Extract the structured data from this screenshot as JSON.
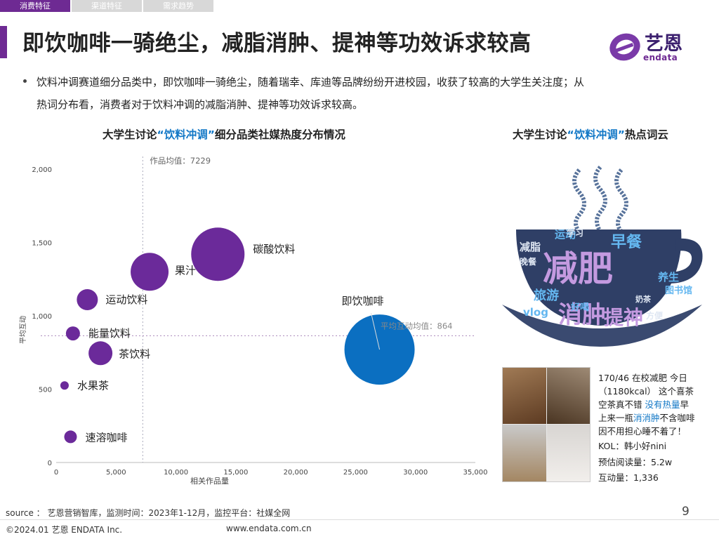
{
  "tabs": [
    {
      "label": "消费特征",
      "active": true
    },
    {
      "label": "渠道特征",
      "active": false
    },
    {
      "label": "需求趋势",
      "active": false
    }
  ],
  "page_title": "即饮咖啡一骑绝尘，减脂消肿、提神等功效诉求较高",
  "logo": {
    "cn": "艺恩",
    "en": "endata"
  },
  "bullet": {
    "line1": "饮料冲调赛道细分品类中，即饮咖啡一骑绝尘，随着瑞幸、库迪等品牌纷纷开进校园，收获了较高的大学生关注度；从",
    "line2": "热词分布看，消费者对于饮料冲调的减脂消肿、提神等功效诉求较高。"
  },
  "chart_title": {
    "pre": "大学生讨论",
    "hl": "“饮料冲调”",
    "post": "细分品类社媒热度分布情况"
  },
  "cloud_title": {
    "pre": "大学生讨论",
    "hl": "“饮料冲调”",
    "post": "热点词云"
  },
  "chart_data": {
    "type": "scatter",
    "bubble": true,
    "xlabel": "相关作品量",
    "ylabel": "平均互动",
    "xlim": [
      0,
      35000
    ],
    "ylim": [
      0,
      2000
    ],
    "xticks": [
      0,
      5000,
      10000,
      15000,
      20000,
      25000,
      30000,
      35000
    ],
    "xtick_labels": [
      "0",
      "5,000",
      "10,000",
      "15,000",
      "20,000",
      "25,000",
      "30,000",
      "35,000"
    ],
    "yticks": [
      0,
      500,
      1000,
      1500,
      2000
    ],
    "ytick_labels": [
      "0",
      "500",
      "1,000",
      "1,500",
      "2,000"
    ],
    "ref_x": {
      "value": 7229,
      "label": "作品均值：7229"
    },
    "ref_y": {
      "value": 864,
      "label": "平均互动均值：864"
    },
    "points": [
      {
        "name": "碳酸饮料",
        "x": 13500,
        "y": 1420,
        "r": 38,
        "color": "#6b2a9a"
      },
      {
        "name": "果汁",
        "x": 7800,
        "y": 1300,
        "r": 27,
        "color": "#6b2a9a"
      },
      {
        "name": "运动饮料",
        "x": 2600,
        "y": 1110,
        "r": 15,
        "color": "#6b2a9a"
      },
      {
        "name": "能量饮料",
        "x": 1400,
        "y": 880,
        "r": 10,
        "color": "#6b2a9a"
      },
      {
        "name": "茶饮料",
        "x": 3700,
        "y": 745,
        "r": 17,
        "color": "#6b2a9a"
      },
      {
        "name": "水果茶",
        "x": 700,
        "y": 525,
        "r": 6,
        "color": "#6b2a9a"
      },
      {
        "name": "速溶咖啡",
        "x": 1200,
        "y": 175,
        "r": 9,
        "color": "#6b2a9a"
      },
      {
        "name": "即饮咖啡",
        "x": 27000,
        "y": 770,
        "r": 50,
        "color": "#0b6fc1"
      }
    ]
  },
  "wordcloud": {
    "words": [
      {
        "text": "减肥",
        "color": "#6b2a9a"
      },
      {
        "text": "消肿",
        "color": "#6b2a9a"
      },
      {
        "text": "提神",
        "color": "#6b2a9a"
      },
      {
        "text": "早餐",
        "color": "#1177c6"
      },
      {
        "text": "旅游",
        "color": "#1177c6"
      },
      {
        "text": "运动",
        "color": "#1177c6"
      },
      {
        "text": "养生",
        "color": "#1177c6"
      },
      {
        "text": "vlog",
        "color": "#1177c6"
      },
      {
        "text": "好喝",
        "color": "#1177c6"
      },
      {
        "text": "图书馆",
        "color": "#1177c6"
      },
      {
        "text": "减脂",
        "color": "#444"
      },
      {
        "text": "晚餐",
        "color": "#444"
      },
      {
        "text": "学习",
        "color": "#444"
      },
      {
        "text": "方便",
        "color": "#444"
      },
      {
        "text": "奶茶",
        "color": "#444"
      }
    ]
  },
  "post": {
    "line1": "170/46 在校减肥 今日",
    "line2": "（1180kcal） 这个喜茶",
    "line3_pre": "空茶真不错 ",
    "line3_hl": "没有热量",
    "line3_post": "早",
    "line4_pre": "上来一瓶",
    "line4_hl": "消消肿",
    "line4_post": "不含咖啡",
    "line5": "因不用担心睡不着了！",
    "kol": "KOL：韩小好nini",
    "reads": "预估阅读量：5.2w",
    "interactions": "互动量：1,336"
  },
  "footer": {
    "source": "source ： 艺恩营销智库，监测时间：2023年1-12月，监控平台：社媒全网",
    "page": "9",
    "copyright": "©2024.01  艺恩 ENDATA Inc.",
    "site": "www.endata.com.cn"
  }
}
